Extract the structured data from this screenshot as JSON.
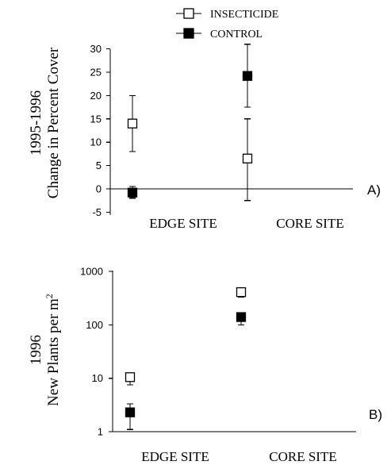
{
  "legend": {
    "insecticide": "INSECTICIDE",
    "control": "CONTROL"
  },
  "chart_data": [
    {
      "type": "scatter",
      "panel_label": "A)",
      "ylabel_line1": "1995-1996",
      "ylabel_line2": "Change in Percent Cover",
      "ylim": [
        -5,
        30
      ],
      "yticks": [
        "-5",
        "0",
        "5",
        "10",
        "15",
        "20",
        "25",
        "30"
      ],
      "categories": [
        "EDGE SITE",
        "CORE SITE"
      ],
      "series": [
        {
          "name": "INSECTICIDE",
          "marker": "open-square",
          "values": [
            14,
            6.5
          ],
          "err_low": [
            8,
            -2.5
          ],
          "err_high": [
            20,
            15
          ]
        },
        {
          "name": "CONTROL",
          "marker": "filled-square",
          "values": [
            -0.8,
            24.2
          ],
          "err_low": [
            -2,
            17.5
          ],
          "err_high": [
            0.5,
            31
          ]
        }
      ],
      "zero_line": true
    },
    {
      "type": "scatter",
      "panel_label": "B)",
      "ylabel_line1": "1996",
      "ylabel_line2": "New Plants per m",
      "ylabel_sup": "2",
      "scale": "log",
      "ylim": [
        1,
        1000
      ],
      "yticks": [
        "1",
        "10",
        "100",
        "1000"
      ],
      "categories": [
        "EDGE SITE",
        "CORE SITE"
      ],
      "series": [
        {
          "name": "INSECTICIDE",
          "marker": "open-square",
          "values": [
            10.5,
            410
          ],
          "err_low": [
            7.5,
            330
          ],
          "err_high": [
            12,
            430
          ]
        },
        {
          "name": "CONTROL",
          "marker": "filled-square",
          "values": [
            2.3,
            140
          ],
          "err_low": [
            1.1,
            100
          ],
          "err_high": [
            3.3,
            170
          ]
        }
      ]
    }
  ]
}
